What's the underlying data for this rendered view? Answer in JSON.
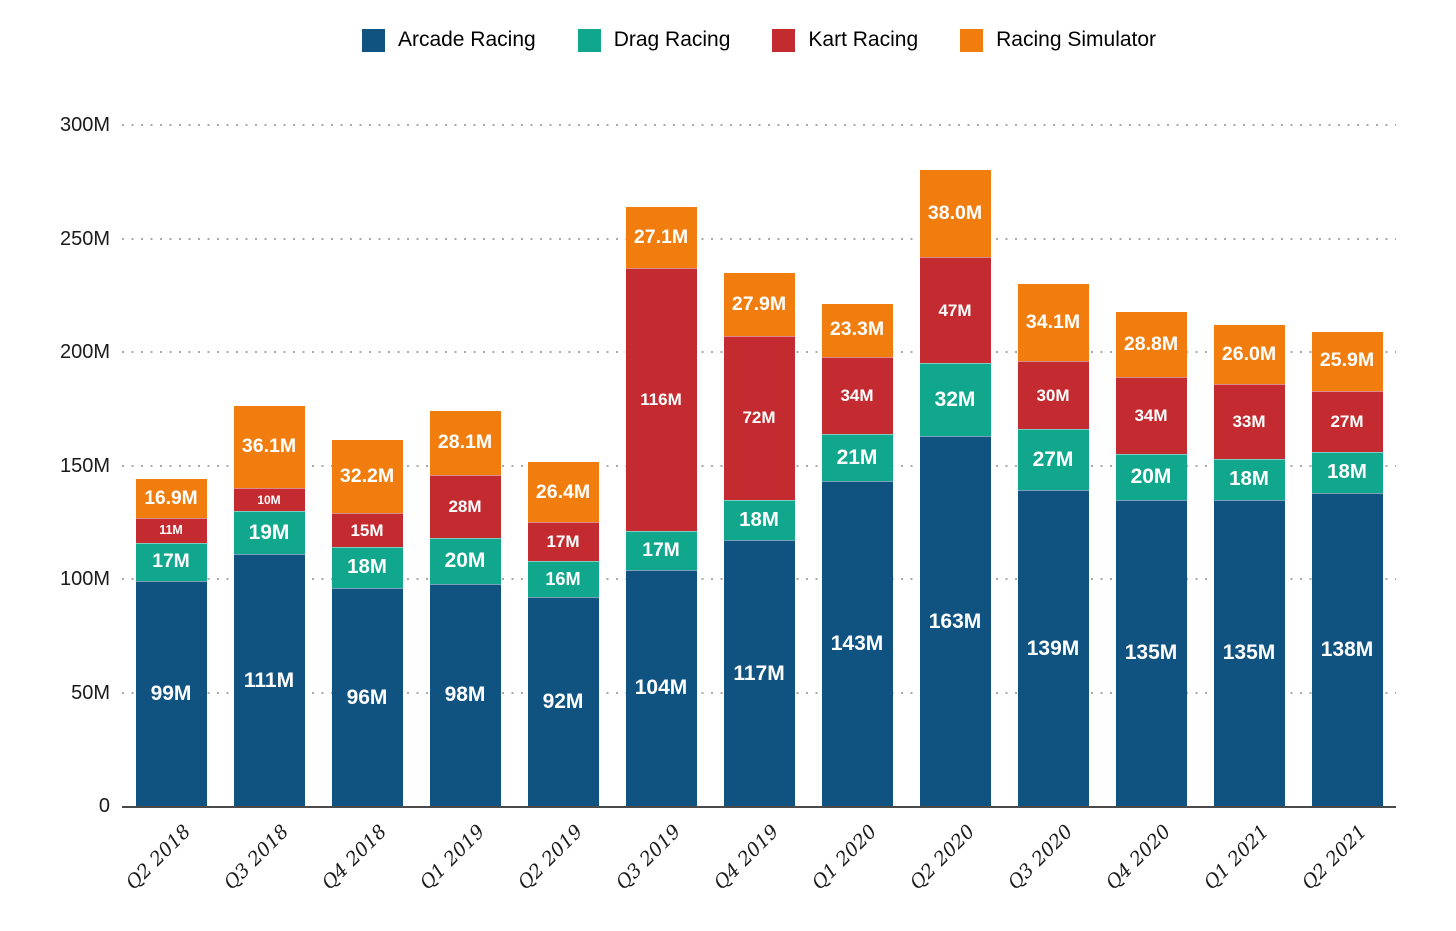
{
  "chart_data": {
    "type": "bar",
    "stacked": true,
    "title": "",
    "xlabel": "",
    "ylabel": "",
    "legend_position": "top-center",
    "grid": "dotted-horizontal",
    "ylim": [
      0,
      300
    ],
    "categories": [
      "Q2 2018",
      "Q3 2018",
      "Q4 2018",
      "Q1 2019",
      "Q2 2019",
      "Q3 2019",
      "Q4 2019",
      "Q1 2020",
      "Q2 2020",
      "Q3 2020",
      "Q4 2020",
      "Q1 2021",
      "Q2 2021"
    ],
    "series": [
      {
        "name": "Arcade Racing",
        "color": "#115380",
        "values": [
          99,
          111,
          96,
          98,
          92,
          104,
          117,
          143,
          163,
          139,
          135,
          135,
          138
        ],
        "labels": [
          "99M",
          "111M",
          "96M",
          "98M",
          "92M",
          "104M",
          "117M",
          "143M",
          "163M",
          "139M",
          "135M",
          "135M",
          "138M"
        ]
      },
      {
        "name": "Drag Racing",
        "color": "#10a78c",
        "values": [
          17,
          19,
          18,
          20,
          16,
          17,
          18,
          21,
          32,
          27,
          20,
          18,
          18
        ],
        "labels": [
          "17M",
          "19M",
          "18M",
          "20M",
          "16M",
          "17M",
          "18M",
          "21M",
          "32M",
          "27M",
          "20M",
          "18M",
          "18M"
        ]
      },
      {
        "name": "Kart Racing",
        "color": "#c32b30",
        "values": [
          11,
          10,
          15,
          28,
          17,
          116,
          72,
          34,
          47,
          30,
          34,
          33,
          27
        ],
        "labels": [
          "11M",
          "10M",
          "15M",
          "28M",
          "17M",
          "116M",
          "72M",
          "34M",
          "47M",
          "30M",
          "34M",
          "33M",
          "27M"
        ]
      },
      {
        "name": "Racing Simulator",
        "color": "#f17d0e",
        "values": [
          16.9,
          36.1,
          32.2,
          28.1,
          26.4,
          27.1,
          27.9,
          23.3,
          38.0,
          34.1,
          28.8,
          26.0,
          25.9
        ],
        "labels": [
          "16.9M",
          "36.1M",
          "32.2M",
          "28.1M",
          "26.4M",
          "27.1M",
          "27.9M",
          "23.3M",
          "38.0M",
          "34.1M",
          "28.8M",
          "26.0M",
          "25.9M"
        ]
      }
    ],
    "y_axis": {
      "tick_values": [
        0,
        50,
        100,
        150,
        200,
        250,
        300
      ],
      "tick_labels": [
        "0",
        "50M",
        "100M",
        "150M",
        "200M",
        "250M",
        "300M"
      ]
    }
  }
}
